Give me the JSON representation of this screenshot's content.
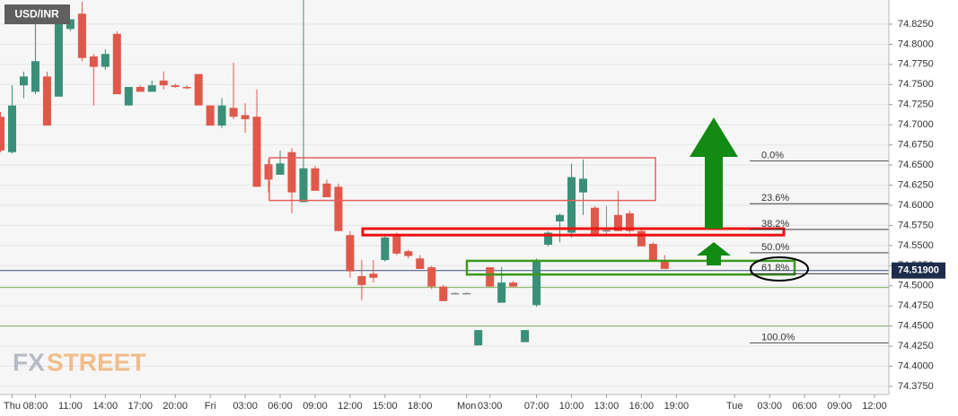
{
  "chart_data": {
    "type": "candlestick",
    "title": "USD/INR",
    "logo": {
      "left": "FX",
      "right": "STREET"
    },
    "categories": [
      null,
      "Thu",
      null,
      "08:00",
      null,
      null,
      "11:00",
      null,
      null,
      "14:00",
      null,
      null,
      "17:00",
      null,
      null,
      "20:00",
      null,
      null,
      "Fri",
      null,
      null,
      "03:00",
      null,
      null,
      "06:00",
      null,
      null,
      "09:00",
      null,
      null,
      "12:00",
      null,
      null,
      "15:00",
      null,
      null,
      "18:00",
      null,
      null,
      null,
      "Mon",
      null,
      "03:00",
      null,
      null,
      null,
      "07:00",
      null,
      null,
      "10:00",
      null,
      null,
      "13:00",
      null,
      null,
      "16:00",
      null,
      null,
      "19:00",
      null,
      null,
      null,
      null,
      "Tue",
      null,
      null,
      "03:00",
      null,
      null,
      "06:00",
      null,
      null,
      "09:00",
      null,
      null,
      "12:00",
      null
    ],
    "series": [
      {
        "up_color": "#3a8f78",
        "down_color": "#e0584a",
        "flat_color": "#888888",
        "open": [
          74.71,
          74.666,
          74.749,
          74.741,
          74.76,
          74.735,
          74.819,
          74.838,
          74.785,
          74.772,
          74.813,
          74.724,
          74.747,
          74.741,
          74.755,
          74.749,
          74.747,
          74.763,
          74.724,
          74.699,
          74.721,
          74.712,
          74.71,
          74.651,
          74.638,
          74.666,
          74.604,
          74.646,
          74.627,
          74.623,
          74.563,
          74.512,
          74.515,
          74.532,
          74.563,
          74.543,
          74.534,
          74.523,
          74.499,
          74.491,
          74.491,
          74.426,
          74.523,
          74.479,
          74.504,
          74.43,
          74.476,
          74.551,
          74.58,
          74.566,
          74.616,
          74.597,
          74.569,
          74.588,
          74.59,
          74.568,
          74.552,
          74.532,
          null,
          null,
          null,
          null,
          null,
          null,
          null,
          null,
          null,
          null,
          null,
          null,
          null,
          null,
          null,
          null,
          null,
          null,
          null
        ],
        "high": [
          74.716,
          74.749,
          74.766,
          74.833,
          74.766,
          74.838,
          74.831,
          74.853,
          74.788,
          74.794,
          74.816,
          74.747,
          74.749,
          74.755,
          74.766,
          74.751,
          74.749,
          74.763,
          74.724,
          74.733,
          74.777,
          74.727,
          74.744,
          74.657,
          74.668,
          74.671,
          74.855,
          74.649,
          74.632,
          74.627,
          74.568,
          74.532,
          74.532,
          74.563,
          74.566,
          74.545,
          74.538,
          74.525,
          74.501,
          74.492,
          74.492,
          74.445,
          74.523,
          74.523,
          74.506,
          74.445,
          74.534,
          74.568,
          74.59,
          74.652,
          74.657,
          74.599,
          74.599,
          74.618,
          74.593,
          74.571,
          74.554,
          74.538,
          null,
          null,
          null,
          null,
          null,
          null,
          null,
          null,
          null,
          null,
          null,
          null,
          null,
          null,
          null,
          null,
          null,
          null,
          null
        ],
        "low": [
          74.666,
          74.664,
          74.733,
          74.738,
          74.699,
          74.735,
          74.816,
          74.779,
          74.724,
          74.768,
          74.738,
          74.724,
          74.741,
          74.741,
          74.744,
          74.746,
          74.744,
          74.724,
          74.699,
          74.696,
          74.707,
          74.69,
          74.623,
          74.616,
          74.638,
          74.59,
          74.604,
          74.618,
          74.61,
          74.568,
          74.51,
          74.482,
          74.504,
          74.53,
          74.538,
          74.534,
          74.521,
          74.496,
          74.481,
          74.49,
          74.49,
          74.426,
          74.499,
          74.479,
          74.499,
          74.43,
          74.474,
          74.549,
          74.554,
          74.56,
          74.588,
          74.563,
          74.563,
          74.568,
          74.566,
          74.549,
          74.53,
          74.521,
          null,
          null,
          null,
          null,
          null,
          null,
          null,
          null,
          null,
          null,
          null,
          null,
          null,
          null,
          null,
          null,
          null,
          null,
          null
        ],
        "close": [
          74.668,
          74.724,
          74.76,
          74.779,
          74.699,
          74.831,
          74.831,
          74.783,
          74.772,
          74.788,
          74.738,
          74.747,
          74.741,
          74.749,
          74.749,
          74.747,
          74.746,
          74.724,
          74.699,
          74.724,
          74.71,
          74.707,
          74.623,
          74.632,
          74.652,
          74.616,
          74.646,
          74.618,
          74.61,
          74.568,
          74.518,
          74.501,
          74.51,
          74.56,
          74.54,
          74.537,
          74.521,
          74.499,
          74.481,
          74.491,
          74.491,
          74.445,
          74.499,
          74.504,
          74.499,
          74.445,
          74.532,
          74.566,
          74.588,
          74.635,
          74.633,
          74.563,
          74.569,
          74.568,
          74.568,
          74.549,
          74.532,
          74.521,
          null,
          null,
          null,
          null,
          null,
          null,
          null,
          null,
          null,
          null,
          null,
          null,
          null,
          null,
          null,
          null,
          null,
          null,
          null
        ]
      }
    ],
    "ylim": [
      74.365,
      74.855
    ],
    "yticks": [
      {
        "value": 74.375,
        "label": "74.3750"
      },
      {
        "value": 74.4,
        "label": "74.4000"
      },
      {
        "value": 74.425,
        "label": "74.4250"
      },
      {
        "value": 74.45,
        "label": "74.4500"
      },
      {
        "value": 74.475,
        "label": "74.4750"
      },
      {
        "value": 74.5,
        "label": "74.5000"
      },
      {
        "value": 74.525,
        "label": "74.5250"
      },
      {
        "value": 74.55,
        "label": "74.5500"
      },
      {
        "value": 74.575,
        "label": "74.5750"
      },
      {
        "value": 74.6,
        "label": "74.6000"
      },
      {
        "value": 74.625,
        "label": "74.6250"
      },
      {
        "value": 74.65,
        "label": "74.6500"
      },
      {
        "value": 74.675,
        "label": "74.6750"
      },
      {
        "value": 74.7,
        "label": "74.7000"
      },
      {
        "value": 74.725,
        "label": "74.7250"
      },
      {
        "value": 74.75,
        "label": "74.7500"
      },
      {
        "value": 74.775,
        "label": "74.7750"
      },
      {
        "value": 74.8,
        "label": "74.8000"
      },
      {
        "value": 74.825,
        "label": "74.8250"
      }
    ],
    "grid": true,
    "current_price": {
      "value": 74.519,
      "label": "74.51900",
      "color": "#3b4a7a",
      "box_color": "#1c2c4a"
    },
    "levels": [
      {
        "value": 74.498,
        "color": "#7cb05a"
      },
      {
        "value": 74.45,
        "color": "#7cb05a"
      }
    ],
    "fibonacci": [
      {
        "label": "0.0%",
        "value": 74.655
      },
      {
        "label": "23.6%",
        "value": 74.602
      },
      {
        "label": "38.2%",
        "value": 74.57
      },
      {
        "label": "50.0%",
        "value": 74.541
      },
      {
        "label": "61.8%",
        "value": 74.515
      },
      {
        "label": "100.0%",
        "value": 74.429
      }
    ],
    "zones": [
      {
        "top": 74.659,
        "bottom": 74.606,
        "color": "#e8605a"
      },
      {
        "top": 74.571,
        "bottom": 74.563,
        "color": "#ee1111"
      },
      {
        "top": 74.531,
        "bottom": 74.514,
        "color": "#3a9a1a"
      }
    ]
  }
}
